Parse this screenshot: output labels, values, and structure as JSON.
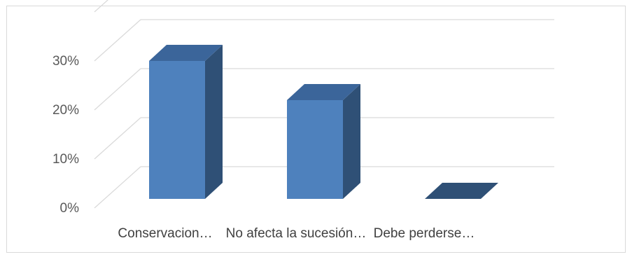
{
  "chart_data": {
    "type": "bar",
    "style": "3d-clustered-column",
    "categories": [
      "Conservacion…",
      "No afecta la sucesión…",
      "Debe perderse…"
    ],
    "values": [
      0.3,
      0.22,
      0.0
    ],
    "y_tick_labels": [
      "0%",
      "10%",
      "20%",
      "30%"
    ],
    "y_ticks": [
      0,
      0.1,
      0.2,
      0.3
    ],
    "ylim": [
      0,
      0.4
    ],
    "grid": true,
    "legend": "none"
  },
  "colors": {
    "bar_front": "#4e81bd",
    "bar_side": "#2f5076",
    "bar_top": "#3b659a",
    "grid": "#d9d9d9",
    "border": "#d9d9d9"
  }
}
